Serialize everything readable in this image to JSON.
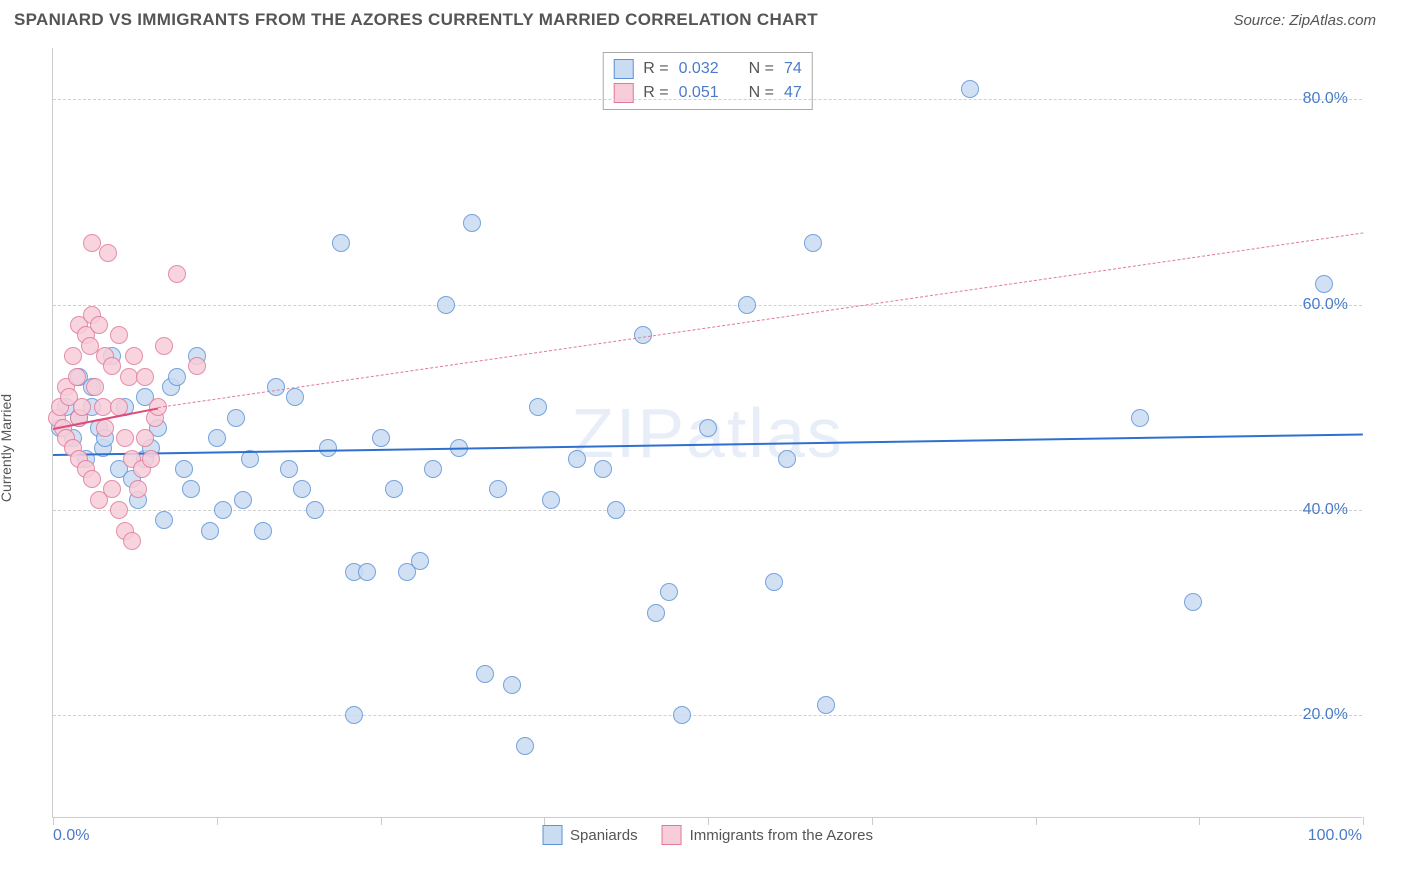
{
  "title": "SPANIARD VS IMMIGRANTS FROM THE AZORES CURRENTLY MARRIED CORRELATION CHART",
  "source": "Source: ZipAtlas.com",
  "watermark": "ZIPatlas",
  "chart": {
    "type": "scatter",
    "ylabel": "Currently Married",
    "xlim": [
      0,
      100
    ],
    "ylim": [
      10,
      85
    ],
    "xtick_label_left": "0.0%",
    "xtick_label_right": "100.0%",
    "xticks": [
      0,
      12.5,
      25,
      37.5,
      50,
      62.5,
      75,
      87.5,
      100
    ],
    "yticks": [
      {
        "v": 20,
        "label": "20.0%"
      },
      {
        "v": 40,
        "label": "40.0%"
      },
      {
        "v": 60,
        "label": "60.0%"
      },
      {
        "v": 80,
        "label": "80.0%"
      }
    ],
    "grid_color": "#d0d0d0",
    "axis_color": "#cccccc",
    "background_color": "#ffffff",
    "tick_label_color": "#4a7bc8",
    "label_color": "#555555",
    "marker_radius": 9,
    "marker_stroke_width": 1.5,
    "series": [
      {
        "name": "Spaniards",
        "fill": "#c9dcf2",
        "stroke": "#5f93d8",
        "swatch_border": "#5f93d8",
        "R": "0.032",
        "N": "74",
        "trend": {
          "x1": 0,
          "y1": 45.5,
          "x2": 100,
          "y2": 47.5,
          "color": "#2f6fd0",
          "width": 2.5,
          "dash": false
        },
        "points": [
          [
            0.5,
            48
          ],
          [
            1,
            50
          ],
          [
            1.5,
            47
          ],
          [
            2,
            49
          ],
          [
            2,
            53
          ],
          [
            2.5,
            45
          ],
          [
            3,
            52
          ],
          [
            3,
            50
          ],
          [
            3.5,
            48
          ],
          [
            3.8,
            46
          ],
          [
            4,
            47
          ],
          [
            4.5,
            55
          ],
          [
            5,
            44
          ],
          [
            5.5,
            50
          ],
          [
            6,
            43
          ],
          [
            6.5,
            41
          ],
          [
            7,
            51
          ],
          [
            7,
            45
          ],
          [
            7.5,
            46
          ],
          [
            8,
            48
          ],
          [
            8.5,
            39
          ],
          [
            9,
            52
          ],
          [
            9.5,
            53
          ],
          [
            10,
            44
          ],
          [
            10.5,
            42
          ],
          [
            11,
            55
          ],
          [
            12,
            38
          ],
          [
            12.5,
            47
          ],
          [
            13,
            40
          ],
          [
            14,
            49
          ],
          [
            14.5,
            41
          ],
          [
            15,
            45
          ],
          [
            16,
            38
          ],
          [
            17,
            52
          ],
          [
            18,
            44
          ],
          [
            18.5,
            51
          ],
          [
            19,
            42
          ],
          [
            20,
            40
          ],
          [
            21,
            46
          ],
          [
            22,
            66
          ],
          [
            23,
            34
          ],
          [
            23,
            20
          ],
          [
            24,
            34
          ],
          [
            25,
            47
          ],
          [
            26,
            42
          ],
          [
            27,
            34
          ],
          [
            28,
            35
          ],
          [
            29,
            44
          ],
          [
            30,
            60
          ],
          [
            31,
            46
          ],
          [
            32,
            68
          ],
          [
            33,
            24
          ],
          [
            34,
            42
          ],
          [
            35,
            23
          ],
          [
            36,
            17
          ],
          [
            37,
            50
          ],
          [
            38,
            41
          ],
          [
            40,
            45
          ],
          [
            42,
            44
          ],
          [
            43,
            40
          ],
          [
            45,
            57
          ],
          [
            46,
            30
          ],
          [
            47,
            32
          ],
          [
            48,
            20
          ],
          [
            50,
            48
          ],
          [
            53,
            60
          ],
          [
            55,
            33
          ],
          [
            56,
            45
          ],
          [
            58,
            66
          ],
          [
            59,
            21
          ],
          [
            70,
            81
          ],
          [
            83,
            49
          ],
          [
            87,
            31
          ],
          [
            97,
            62
          ]
        ]
      },
      {
        "name": "Immigrants from the Azores",
        "fill": "#f7cdd9",
        "stroke": "#e07a9c",
        "swatch_border": "#e07a9c",
        "R": "0.051",
        "N": "47",
        "trend_solid": {
          "x1": 0,
          "y1": 48,
          "x2": 8,
          "y2": 50,
          "color": "#e04a7a",
          "width": 2.5,
          "dash": false
        },
        "trend_dash": {
          "x1": 8,
          "y1": 50,
          "x2": 100,
          "y2": 67,
          "color": "#e07a9c",
          "width": 1.5,
          "dash": true
        },
        "points": [
          [
            0.3,
            49
          ],
          [
            0.5,
            50
          ],
          [
            0.8,
            48
          ],
          [
            1,
            52
          ],
          [
            1,
            47
          ],
          [
            1.2,
            51
          ],
          [
            1.5,
            55
          ],
          [
            1.5,
            46
          ],
          [
            1.8,
            53
          ],
          [
            2,
            58
          ],
          [
            2,
            45
          ],
          [
            2,
            49
          ],
          [
            2.2,
            50
          ],
          [
            2.5,
            57
          ],
          [
            2.5,
            44
          ],
          [
            2.8,
            56
          ],
          [
            3,
            66
          ],
          [
            3,
            43
          ],
          [
            3,
            59
          ],
          [
            3.2,
            52
          ],
          [
            3.5,
            41
          ],
          [
            3.5,
            58
          ],
          [
            3.8,
            50
          ],
          [
            4,
            55
          ],
          [
            4,
            48
          ],
          [
            4.2,
            65
          ],
          [
            4.5,
            42
          ],
          [
            4.5,
            54
          ],
          [
            5,
            40
          ],
          [
            5,
            57
          ],
          [
            5,
            50
          ],
          [
            5.5,
            38
          ],
          [
            5.5,
            47
          ],
          [
            5.8,
            53
          ],
          [
            6,
            37
          ],
          [
            6,
            45
          ],
          [
            6.2,
            55
          ],
          [
            6.5,
            42
          ],
          [
            6.8,
            44
          ],
          [
            7,
            47
          ],
          [
            7,
            53
          ],
          [
            7.5,
            45
          ],
          [
            7.8,
            49
          ],
          [
            8,
            50
          ],
          [
            8.5,
            56
          ],
          [
            9.5,
            63
          ],
          [
            11,
            54
          ]
        ]
      }
    ]
  },
  "stats_box": {
    "rows": [
      {
        "series_idx": 0,
        "r_label": "R =",
        "n_label": "N ="
      },
      {
        "series_idx": 1,
        "r_label": "R =",
        "n_label": "N ="
      }
    ]
  },
  "bottom_legend": [
    {
      "series_idx": 0
    },
    {
      "series_idx": 1
    }
  ]
}
